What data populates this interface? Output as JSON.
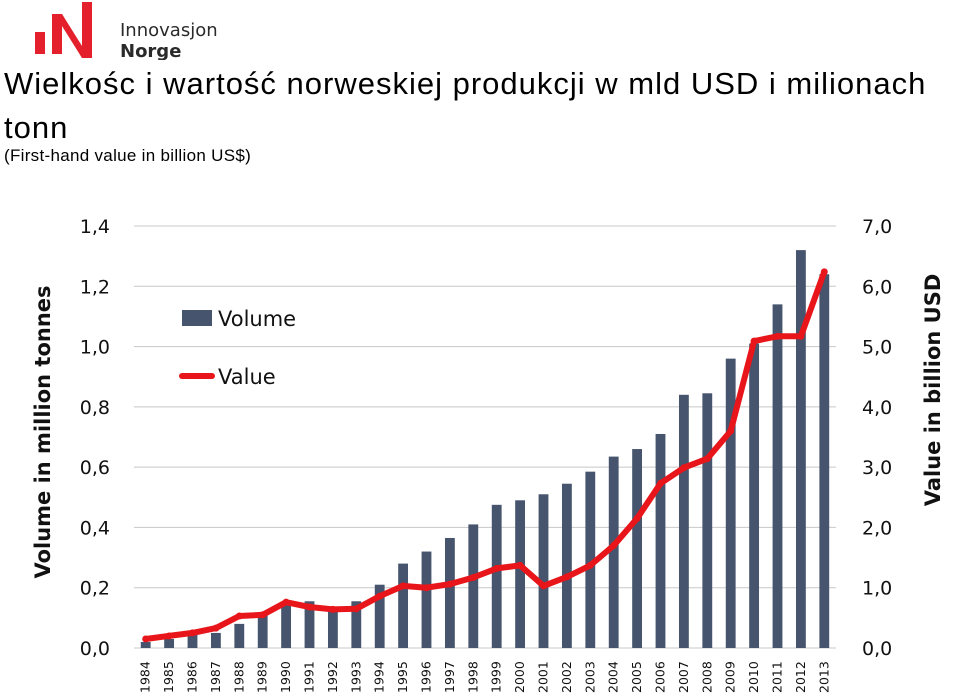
{
  "logo": {
    "line1": "Innovasjon",
    "line2": "Norge",
    "accent": "#e4202c"
  },
  "title": "Wielkośc i wartość norweskiej produkcji w mld USD i milionach tonn",
  "subtitle": "(First-hand value in billion US$)",
  "chart_data": {
    "type": "bar+line",
    "categories": [
      "1984",
      "1985",
      "1986",
      "1987",
      "1988",
      "1989",
      "1990",
      "1991",
      "1992",
      "1993",
      "1994",
      "1995",
      "1996",
      "1997",
      "1998",
      "1999",
      "2000",
      "2001",
      "2002",
      "2003",
      "2004",
      "2005",
      "2006",
      "2007",
      "2008",
      "2009",
      "2010",
      "2011",
      "2012",
      "2013"
    ],
    "series": [
      {
        "name": "Volume",
        "type": "bar",
        "axis": "left",
        "color": "#46546e",
        "values": [
          0.02,
          0.03,
          0.045,
          0.05,
          0.08,
          0.11,
          0.15,
          0.155,
          0.13,
          0.155,
          0.21,
          0.28,
          0.32,
          0.365,
          0.41,
          0.475,
          0.49,
          0.51,
          0.545,
          0.585,
          0.635,
          0.66,
          0.71,
          0.84,
          0.845,
          0.96,
          1.01,
          1.14,
          1.32,
          1.24
        ]
      },
      {
        "name": "Value",
        "type": "line",
        "axis": "right",
        "color": "#e8161a",
        "values": [
          0.15,
          0.2,
          0.25,
          0.33,
          0.53,
          0.55,
          0.76,
          0.68,
          0.64,
          0.65,
          0.86,
          1.03,
          1.0,
          1.06,
          1.17,
          1.32,
          1.37,
          1.03,
          1.18,
          1.37,
          1.7,
          2.15,
          2.73,
          2.99,
          3.14,
          3.6,
          5.09,
          5.17,
          5.17,
          6.24
        ]
      }
    ],
    "y_left": {
      "label": "Volume in million tonnes",
      "range": [
        0,
        1.4
      ],
      "ticks": [
        0,
        0.2,
        0.4,
        0.6,
        0.8,
        1.0,
        1.2,
        1.4
      ],
      "tick_labels": [
        "0,0",
        "0,2",
        "0,4",
        "0,6",
        "0,8",
        "1,0",
        "1,2",
        "1,4"
      ]
    },
    "y_right": {
      "label": "Value in billion USD",
      "range": [
        0,
        7
      ],
      "ticks": [
        0,
        1,
        2,
        3,
        4,
        5,
        6,
        7
      ],
      "tick_labels": [
        "0,0",
        "1,0",
        "2,0",
        "3,0",
        "4,0",
        "5,0",
        "6,0",
        "7,0"
      ]
    },
    "grid": true,
    "legend": {
      "placement": "top-left",
      "entries": [
        {
          "label": "Volume",
          "kind": "bar"
        },
        {
          "label": "Value",
          "kind": "line"
        }
      ]
    }
  }
}
